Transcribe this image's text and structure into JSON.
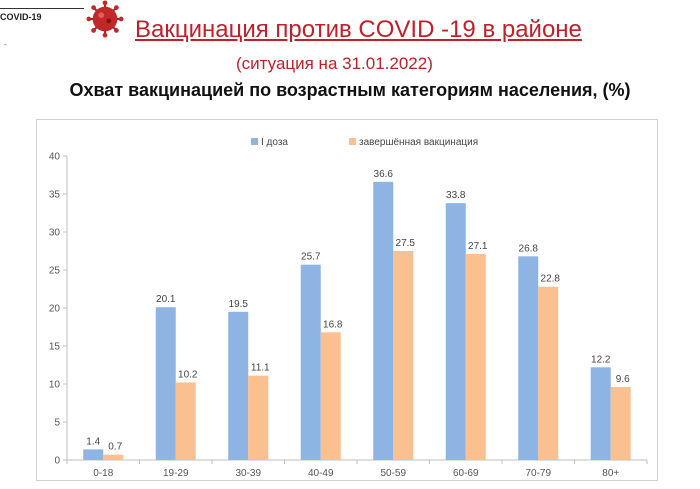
{
  "header": {
    "logo_text": "COVID-19",
    "logo_dash": "-",
    "title": "Вакцинация против COVID -19 в районе",
    "subtitle": "(ситуация на 31.01.2022)",
    "chart_heading": "Охват вакцинацией по возрастным категориям населения, (%)"
  },
  "chart_data": {
    "type": "bar",
    "categories": [
      "0-18",
      "19-29",
      "30-39",
      "40-49",
      "50-59",
      "60-69",
      "70-79",
      "80+"
    ],
    "series": [
      {
        "name": "I доза",
        "color": "#8eb4e3",
        "values": [
          1.4,
          20.1,
          19.5,
          25.7,
          36.6,
          33.8,
          26.8,
          12.2
        ]
      },
      {
        "name": "завершённая вакцинация",
        "color": "#fac090",
        "values": [
          0.7,
          10.2,
          11.1,
          16.8,
          27.5,
          27.1,
          22.8,
          9.6
        ]
      }
    ],
    "ylim": [
      0,
      40
    ],
    "yticks": [
      0,
      5,
      10,
      15,
      20,
      25,
      30,
      35,
      40
    ],
    "legend_position": "top",
    "grid": false
  }
}
